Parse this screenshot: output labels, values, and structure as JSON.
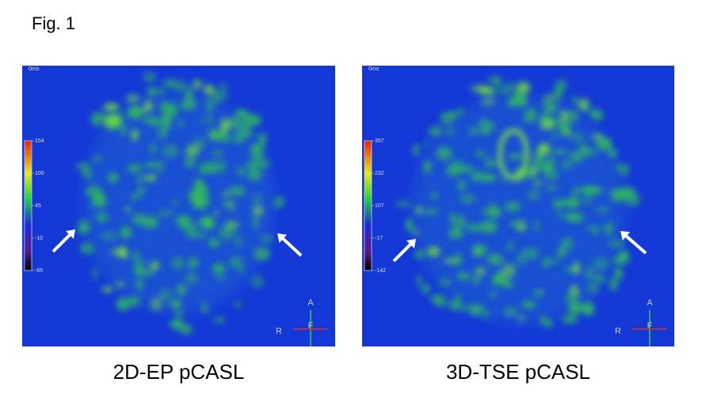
{
  "figure": {
    "label": "Fig. 1"
  },
  "panels": [
    {
      "caption": "2D-EP pCASL",
      "time_label": "0ms",
      "colorbar_labels": [
        154,
        100,
        45,
        -10,
        -65
      ],
      "orientation": {
        "anterior": "A",
        "right": "R",
        "foot": "F"
      }
    },
    {
      "caption": "3D-TSE pCASL",
      "time_label": "0ms",
      "colorbar_labels": [
        357,
        232,
        107,
        -17,
        -142
      ],
      "orientation": {
        "anterior": "A",
        "right": "R",
        "foot": "F"
      }
    }
  ]
}
